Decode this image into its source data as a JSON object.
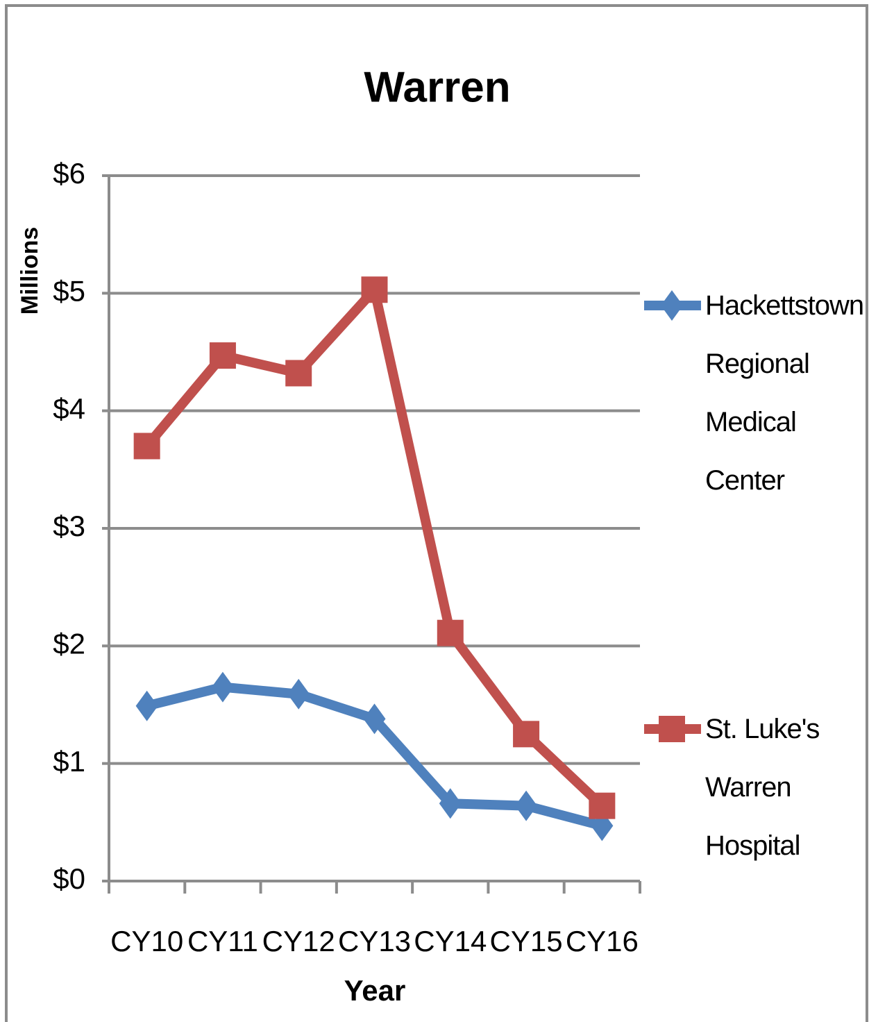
{
  "chart_data": {
    "type": "line",
    "title": "Warren",
    "x_label": "Year",
    "y_label": "Millions",
    "categories": [
      "CY10",
      "CY11",
      "CY12",
      "CY13",
      "CY14",
      "CY15",
      "CY16"
    ],
    "series": [
      {
        "name": "Hackettstown Regional Medical Center",
        "color": "#4f81bd",
        "marker": "diamond",
        "values": [
          1.49,
          1.65,
          1.59,
          1.38,
          0.66,
          0.64,
          0.47
        ]
      },
      {
        "name": "St. Luke's Warren Hospital",
        "color": "#c0504d",
        "marker": "square",
        "values": [
          3.7,
          4.47,
          4.32,
          5.03,
          2.11,
          1.25,
          0.64
        ]
      }
    ],
    "ylim": [
      0,
      6
    ],
    "yticks": [
      {
        "value": 0,
        "label": "$0"
      },
      {
        "value": 1,
        "label": "$1"
      },
      {
        "value": 2,
        "label": "$2"
      },
      {
        "value": 3,
        "label": "$3"
      },
      {
        "value": 4,
        "label": "$4"
      },
      {
        "value": 5,
        "label": "$5"
      },
      {
        "value": 6,
        "label": "$6"
      }
    ],
    "grid": true,
    "legend": "right"
  }
}
